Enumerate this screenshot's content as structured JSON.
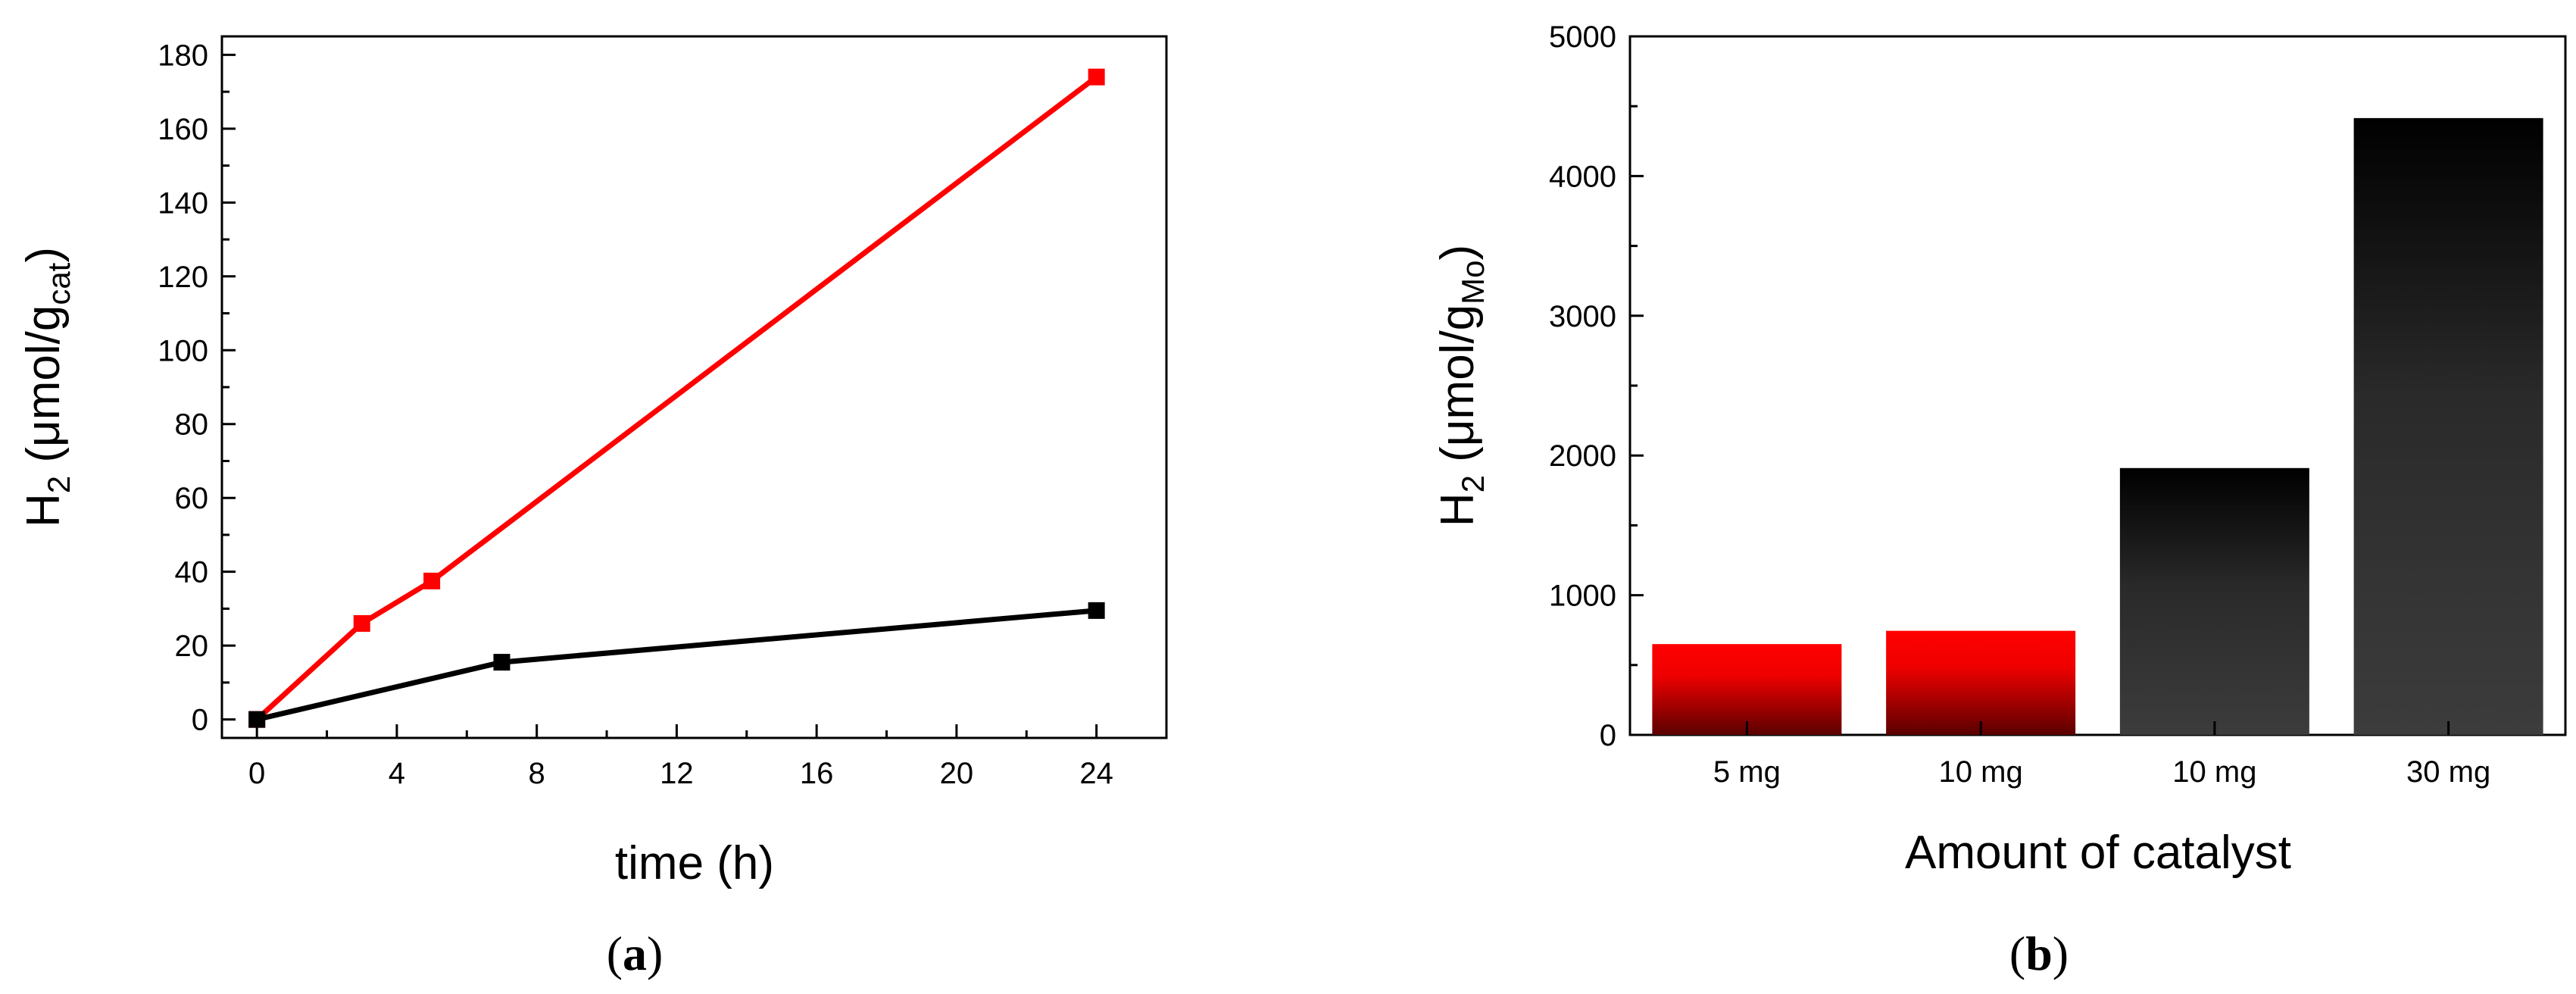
{
  "chart_data": [
    {
      "type": "line",
      "panel_label": "a",
      "xlabel": "time (h)",
      "ylabel": {
        "base": "H",
        "sub1": "2",
        "mid": " (μmol/g",
        "sub2": "cat",
        "end": ")"
      },
      "xlim": [
        -1,
        26
      ],
      "ylim": [
        -5,
        185
      ],
      "xticks": [
        0,
        4,
        8,
        12,
        16,
        20,
        24
      ],
      "yticks": [
        0,
        20,
        40,
        60,
        80,
        100,
        120,
        140,
        160,
        180
      ],
      "series": [
        {
          "name": "red",
          "color": "#ff0000",
          "x": [
            0,
            3,
            5,
            24
          ],
          "y": [
            0,
            26,
            37.5,
            174
          ]
        },
        {
          "name": "black",
          "color": "#000000",
          "x": [
            0,
            7,
            24
          ],
          "y": [
            0,
            15.5,
            29.5
          ]
        }
      ]
    },
    {
      "type": "bar",
      "panel_label": "b",
      "xlabel": "Amount of catalyst",
      "ylabel": {
        "base": "H",
        "sub1": "2",
        "mid": " (μmol/g",
        "sub2": "Mo",
        "end": ")"
      },
      "ylim": [
        0,
        5000
      ],
      "yticks": [
        0,
        1000,
        2000,
        3000,
        4000,
        5000
      ],
      "categories": [
        "5 mg",
        "10 mg",
        "10 mg",
        "30 mg"
      ],
      "values": [
        650,
        745,
        1910,
        4415
      ],
      "colors": [
        "red",
        "red",
        "black",
        "black"
      ]
    }
  ]
}
